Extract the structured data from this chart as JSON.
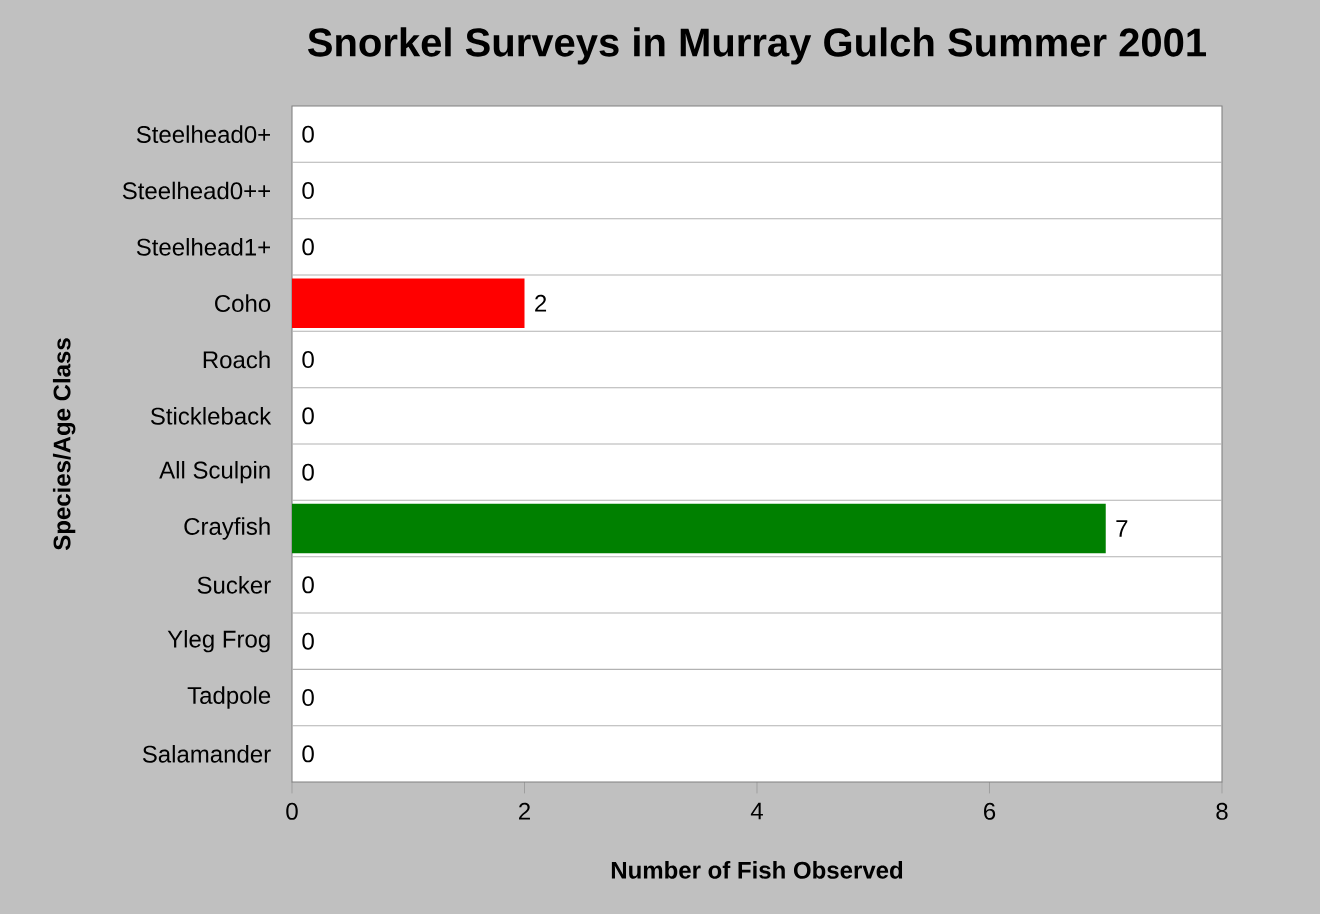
{
  "chart_data": {
    "type": "bar",
    "orientation": "horizontal",
    "title": "Snorkel Surveys in Murray Gulch Summer 2001",
    "xlabel": "Number of Fish Observed",
    "ylabel": "Species/Age Class",
    "categories": [
      "Steelhead0+",
      "Steelhead0++",
      "Steelhead1+",
      "Coho",
      "Roach",
      "Stickleback",
      "All Sculpin",
      "Crayfish",
      "Sucker",
      "Yleg Frog",
      "Tadpole",
      "Salamander"
    ],
    "values": [
      0,
      0,
      0,
      2,
      0,
      0,
      0,
      7,
      0,
      0,
      0,
      0
    ],
    "colors": [
      null,
      null,
      null,
      "#ff0000",
      null,
      null,
      null,
      "#008000",
      null,
      null,
      null,
      null
    ],
    "xlim": [
      0,
      8
    ],
    "xticks": [
      0,
      2,
      4,
      6,
      8
    ],
    "grid": "y",
    "data_labels": true
  }
}
